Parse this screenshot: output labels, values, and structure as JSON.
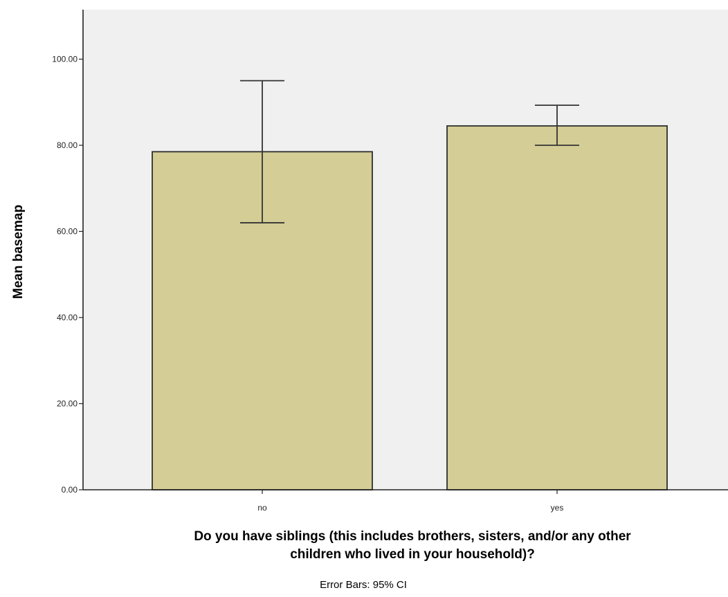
{
  "chart_data": {
    "type": "bar",
    "categories": [
      "no",
      "yes"
    ],
    "values": [
      78.5,
      84.5
    ],
    "error_bars": {
      "lower": [
        62.0,
        80.0
      ],
      "upper": [
        95.0,
        89.3
      ]
    },
    "ylabel": "Mean basemap",
    "xlabel_lines": [
      "Do you have siblings (this includes brothers, sisters, and/or any other",
      "children who lived in your household)?"
    ],
    "footnote": "Error Bars: 95% CI",
    "yticks": [
      "0.00",
      "20.00",
      "40.00",
      "60.00",
      "80.00",
      "100.00"
    ],
    "ylim": [
      0,
      110
    ],
    "grid": false,
    "colors": {
      "bar_fill": "#d4cd96",
      "bar_stroke": "#2e2e2e",
      "plot_background": "#f0f0f0"
    }
  }
}
